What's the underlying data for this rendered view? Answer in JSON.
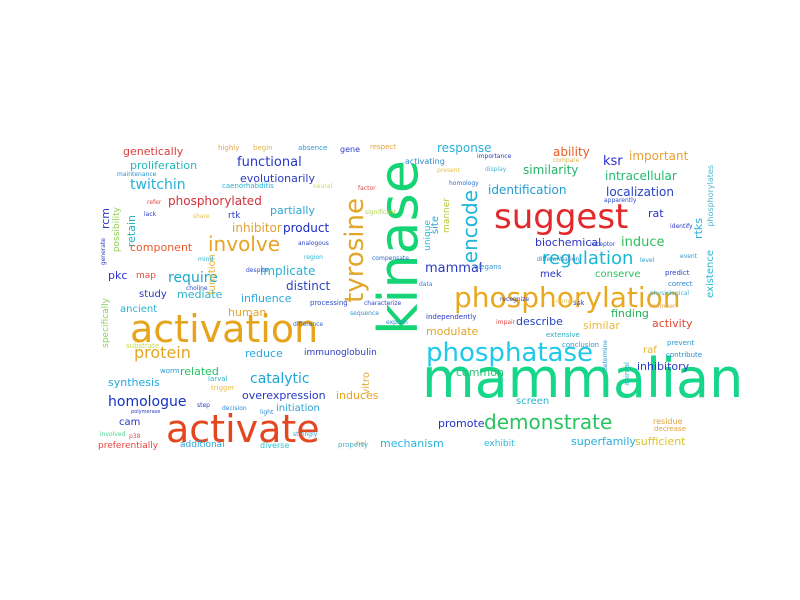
{
  "word_cloud": {
    "words": [
      {
        "text": "kinase",
        "color": "#14d474"
      },
      {
        "text": "mammalian",
        "color": "#16d68a"
      },
      {
        "text": "activation",
        "color": "#e6a31c"
      },
      {
        "text": "activate",
        "color": "#e4471f"
      },
      {
        "text": "phosphorylation",
        "color": "#e9a91f"
      },
      {
        "text": "phosphatase",
        "color": "#1fc9e9"
      },
      {
        "text": "suggest",
        "color": "#e2282a"
      },
      {
        "text": "tyrosine",
        "color": "#e0a72a"
      },
      {
        "text": "demonstrate",
        "color": "#27c35d"
      },
      {
        "text": "encode",
        "color": "#20b5d9"
      },
      {
        "text": "regulation",
        "color": "#19b7d2"
      },
      {
        "text": "involve",
        "color": "#e7a326"
      },
      {
        "text": "protein",
        "color": "#e6a520"
      },
      {
        "text": "catalytic",
        "color": "#1aa7d6"
      },
      {
        "text": "homologue",
        "color": "#1531c4"
      },
      {
        "text": "twitchin",
        "color": "#26b0d6"
      },
      {
        "text": "require",
        "color": "#17a8cc"
      },
      {
        "text": "functional",
        "color": "#2737c8"
      },
      {
        "text": "mammal",
        "color": "#2b3bc4"
      },
      {
        "text": "response",
        "color": "#28b1d8"
      },
      {
        "text": "induce",
        "color": "#2abf5a"
      },
      {
        "text": "similarity",
        "color": "#24b46a"
      },
      {
        "text": "ability",
        "color": "#e65c1f"
      },
      {
        "text": "identification",
        "color": "#1e9bd2"
      },
      {
        "text": "ksr",
        "color": "#2b2ed6"
      },
      {
        "text": "intracellular",
        "color": "#22b96e"
      },
      {
        "text": "important",
        "color": "#e6a232"
      },
      {
        "text": "localization",
        "color": "#2641c4"
      },
      {
        "text": "genetically",
        "color": "#df3b3b"
      },
      {
        "text": "proliferation",
        "color": "#23b6bb"
      },
      {
        "text": "evolutionarily",
        "color": "#2b3bc1"
      },
      {
        "text": "phosphorylated",
        "color": "#d5303a"
      },
      {
        "text": "partially",
        "color": "#2da6d6"
      },
      {
        "text": "inhibitor",
        "color": "#e0a13a"
      },
      {
        "text": "product",
        "color": "#1c2cc3"
      },
      {
        "text": "implicate",
        "color": "#27b0d4"
      },
      {
        "text": "distinct",
        "color": "#2d3fc6"
      },
      {
        "text": "mediate",
        "color": "#2db3c9"
      },
      {
        "text": "influence",
        "color": "#2ba8dc"
      },
      {
        "text": "human",
        "color": "#e6a32c"
      },
      {
        "text": "reduce",
        "color": "#2aa5d8"
      },
      {
        "text": "related",
        "color": "#28c05f"
      },
      {
        "text": "synthesis",
        "color": "#25a8d8"
      },
      {
        "text": "overexpression",
        "color": "#2639c2"
      },
      {
        "text": "induces",
        "color": "#e6a11f"
      },
      {
        "text": "initiation",
        "color": "#2aa3d6"
      },
      {
        "text": "mechanism",
        "color": "#28b4d8"
      },
      {
        "text": "promote",
        "color": "#2232c4"
      },
      {
        "text": "superfamily",
        "color": "#27aed8"
      },
      {
        "text": "sufficient",
        "color": "#dcc42a"
      },
      {
        "text": "exhibit",
        "color": "#2fb6d5"
      },
      {
        "text": "screen",
        "color": "#26b7cc"
      },
      {
        "text": "common",
        "color": "#2cc072"
      },
      {
        "text": "modulate",
        "color": "#e0a42a"
      },
      {
        "text": "describe",
        "color": "#2340c3"
      },
      {
        "text": "similar",
        "color": "#e8b83a"
      },
      {
        "text": "activity",
        "color": "#e0452a"
      },
      {
        "text": "inhibitory",
        "color": "#2a3dc8"
      },
      {
        "text": "finding",
        "color": "#24b35c"
      },
      {
        "text": "raf",
        "color": "#e5b42c"
      },
      {
        "text": "conserve",
        "color": "#2cc25c"
      },
      {
        "text": "mek",
        "color": "#2b33c9"
      },
      {
        "text": "rat",
        "color": "#2134c4"
      },
      {
        "text": "rtks",
        "color": "#2ab1d6"
      },
      {
        "text": "existence",
        "color": "#27b9d1"
      },
      {
        "text": "biochemical",
        "color": "#2b35c4"
      },
      {
        "text": "manner",
        "color": "#b9c731"
      },
      {
        "text": "unique",
        "color": "#2ab8d8"
      },
      {
        "text": "site",
        "color": "#30a6c7"
      },
      {
        "text": "rcm",
        "color": "#2638c8"
      },
      {
        "text": "possibility",
        "color": "#8fd052"
      },
      {
        "text": "retain",
        "color": "#23b3bf"
      },
      {
        "text": "component",
        "color": "#e85a2a"
      },
      {
        "text": "pkc",
        "color": "#2a33d3"
      },
      {
        "text": "study",
        "color": "#2a38c4"
      },
      {
        "text": "ancient",
        "color": "#2ab0d0"
      },
      {
        "text": "map",
        "color": "#e34c35"
      },
      {
        "text": "function",
        "color": "#e6b53c"
      },
      {
        "text": "rtk",
        "color": "#2c3ec2"
      },
      {
        "text": "immunoglobulin",
        "color": "#2b3bc4"
      },
      {
        "text": "cam",
        "color": "#2a34c2"
      },
      {
        "text": "vitro",
        "color": "#e6a63a"
      },
      {
        "text": "additional",
        "color": "#2aa7d8"
      },
      {
        "text": "diverse",
        "color": "#30c3cf"
      },
      {
        "text": "preferentially",
        "color": "#e94340"
      },
      {
        "text": "specifically",
        "color": "#8cd258"
      },
      {
        "text": "caenorhabditis",
        "color": "#27b2d6"
      },
      {
        "text": "gene",
        "color": "#2a3fc6"
      },
      {
        "text": "respect",
        "color": "#e3a53a"
      },
      {
        "text": "activating",
        "color": "#2b8ed0"
      },
      {
        "text": "absence",
        "color": "#2e9bd6"
      },
      {
        "text": "highly",
        "color": "#e2a64a"
      },
      {
        "text": "begin",
        "color": "#e5b24c"
      },
      {
        "text": "importance",
        "color": "#2b3dc2"
      },
      {
        "text": "homology",
        "color": "#2c6ed0"
      },
      {
        "text": "compare",
        "color": "#e2b24a"
      },
      {
        "text": "display",
        "color": "#4ab7cf"
      },
      {
        "text": "present",
        "color": "#e7c24a"
      },
      {
        "text": "maintenance",
        "color": "#2c91c4"
      },
      {
        "text": "significant",
        "color": "#b3d152"
      },
      {
        "text": "elegans",
        "color": "#2c93d6"
      },
      {
        "text": "differentiation",
        "color": "#2c89cc"
      },
      {
        "text": "apparently",
        "color": "#2a4fc8"
      },
      {
        "text": "extensive",
        "color": "#2cb0c3"
      },
      {
        "text": "conclusion",
        "color": "#2c9bd1"
      },
      {
        "text": "predict",
        "color": "#2b43c4"
      },
      {
        "text": "contribute",
        "color": "#2b8cd6"
      },
      {
        "text": "prevent",
        "color": "#2c9bd1"
      },
      {
        "text": "correct",
        "color": "#2c86d1"
      },
      {
        "text": "physiological",
        "color": "#4fb3cf"
      },
      {
        "text": "residue",
        "color": "#e5a23a"
      },
      {
        "text": "decrease",
        "color": "#e5a23a"
      },
      {
        "text": "involved",
        "color": "#4bd190"
      },
      {
        "text": "substrate",
        "color": "#c9d84a"
      },
      {
        "text": "larval",
        "color": "#2ab5c8"
      },
      {
        "text": "worm",
        "color": "#2c9bd1"
      },
      {
        "text": "trigger",
        "color": "#eac24a"
      },
      {
        "text": "decision",
        "color": "#2b8ad6"
      },
      {
        "text": "light",
        "color": "#2b8ad6"
      },
      {
        "text": "strongly",
        "color": "#2ca5d6"
      },
      {
        "text": "processing",
        "color": "#2b4dc8"
      },
      {
        "text": "characterize",
        "color": "#2b45c8"
      },
      {
        "text": "difference",
        "color": "#2a6ac4"
      },
      {
        "text": "explain",
        "color": "#2b88d6"
      },
      {
        "text": "impair",
        "color": "#e2464a"
      },
      {
        "text": "independently",
        "color": "#2b3bc2"
      },
      {
        "text": "p38",
        "color": "#e2464a"
      },
      {
        "text": "sequence",
        "color": "#2c92c4"
      },
      {
        "text": "recognize",
        "color": "#2b3bc2"
      },
      {
        "text": "data",
        "color": "#2b8bd6"
      },
      {
        "text": "ssk",
        "color": "#2a3dc8"
      },
      {
        "text": "member",
        "color": "#e2a44a"
      },
      {
        "text": "receptor",
        "color": "#2b45c8"
      },
      {
        "text": "region",
        "color": "#2bb4d6"
      },
      {
        "text": "analogous",
        "color": "#2b45c8"
      },
      {
        "text": "compensate",
        "color": "#2b6ac4"
      },
      {
        "text": "choline",
        "color": "#2a4fc8"
      },
      {
        "text": "despite",
        "color": "#2a4fc8"
      },
      {
        "text": "refer",
        "color": "#e2464a"
      },
      {
        "text": "lack",
        "color": "#2b3bc2"
      },
      {
        "text": "share",
        "color": "#e7c24a"
      },
      {
        "text": "mind",
        "color": "#2cb0d0"
      },
      {
        "text": "neural",
        "color": "#d8d84a"
      },
      {
        "text": "factor",
        "color": "#e2464a"
      },
      {
        "text": "polymerase",
        "color": "#2b3bc2"
      },
      {
        "text": "identify",
        "color": "#2b3bc2"
      },
      {
        "text": "event",
        "color": "#2c9bd1"
      },
      {
        "text": "level",
        "color": "#2c9bd1"
      },
      {
        "text": "phosphorylates",
        "color": "#4fb3cf"
      },
      {
        "text": "generate",
        "color": "#2b3bc2"
      },
      {
        "text": "step",
        "color": "#2b3bc2"
      },
      {
        "text": "hol",
        "color": "#e2a44a"
      },
      {
        "text": "property",
        "color": "#4bb3cf"
      },
      {
        "text": "domain",
        "color": "#e7c24a"
      },
      {
        "text": "determine",
        "color": "#2c9bd1"
      },
      {
        "text": "animal",
        "color": "#2cb0d0"
      }
    ]
  }
}
